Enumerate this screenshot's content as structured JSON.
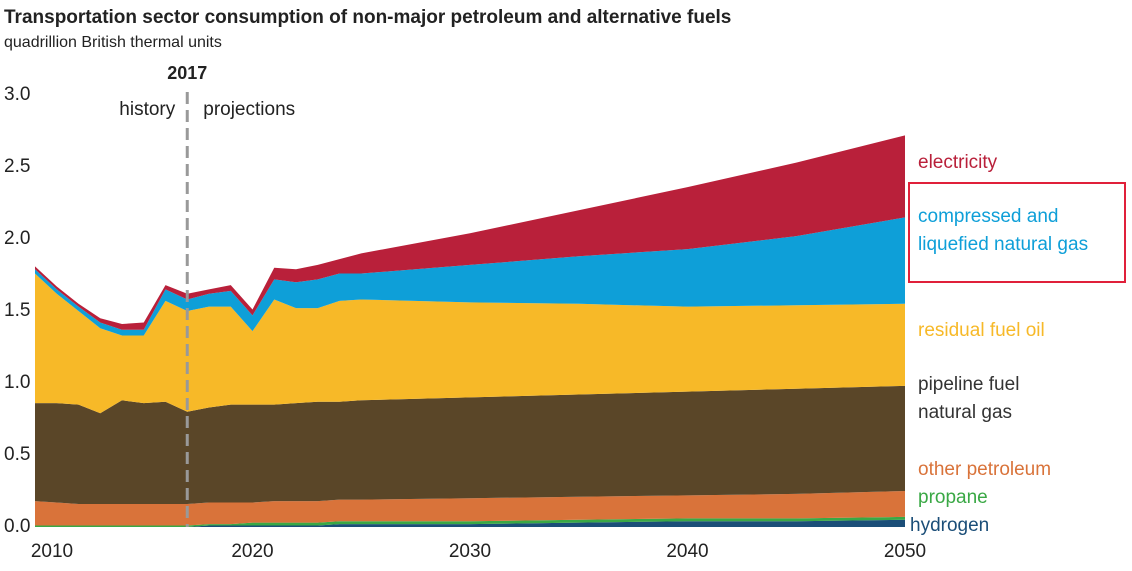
{
  "chart_data": {
    "type": "stacked_area",
    "title": "Transportation sector consumption of non-major petroleum and alternative fuels",
    "subtitle": "quadrillion British thermal units",
    "divider_year": 2017,
    "divider_left": "history",
    "divider_right": "projections",
    "x": [
      2010,
      2011,
      2012,
      2013,
      2014,
      2015,
      2016,
      2017,
      2018,
      2019,
      2020,
      2021,
      2022,
      2023,
      2024,
      2025,
      2030,
      2035,
      2040,
      2045,
      2050
    ],
    "xlim": [
      2010,
      2050
    ],
    "xticks": [
      2010,
      2020,
      2030,
      2040,
      2050
    ],
    "ylim": [
      0,
      3
    ],
    "yticks": [
      {
        "value": 0,
        "label": "0.0"
      },
      0.5,
      {
        "value": 1,
        "label": "1.0"
      },
      1.5,
      {
        "value": 2,
        "label": "2.0"
      },
      2.5,
      {
        "value": 3,
        "label": "3.0"
      }
    ],
    "grid": false,
    "series": [
      {
        "name": "hydrogen",
        "color": "#1b4e78",
        "values": [
          0,
          0,
          0,
          0,
          0,
          0,
          0,
          0,
          0.01,
          0.01,
          0.01,
          0.01,
          0.01,
          0.01,
          0.02,
          0.02,
          0.02,
          0.03,
          0.04,
          0.04,
          0.05
        ]
      },
      {
        "name": "propane",
        "color": "#3aa845",
        "values": [
          0.01,
          0.01,
          0.01,
          0.01,
          0.01,
          0.01,
          0.01,
          0.01,
          0.01,
          0.01,
          0.02,
          0.02,
          0.02,
          0.02,
          0.02,
          0.02,
          0.02,
          0.02,
          0.02,
          0.02,
          0.02
        ]
      },
      {
        "name": "other petroleum",
        "color": "#d9733a",
        "values": [
          0.17,
          0.16,
          0.15,
          0.15,
          0.15,
          0.15,
          0.15,
          0.15,
          0.15,
          0.15,
          0.14,
          0.15,
          0.15,
          0.15,
          0.15,
          0.15,
          0.16,
          0.16,
          0.16,
          0.17,
          0.18
        ]
      },
      {
        "name": "pipeline fuel natural gas",
        "color": "#5a4628",
        "values": [
          0.68,
          0.69,
          0.69,
          0.63,
          0.72,
          0.7,
          0.71,
          0.64,
          0.66,
          0.68,
          0.68,
          0.67,
          0.68,
          0.69,
          0.68,
          0.69,
          0.7,
          0.71,
          0.72,
          0.73,
          0.73
        ]
      },
      {
        "name": "residual fuel oil",
        "color": "#f7b928",
        "values": [
          0.9,
          0.76,
          0.65,
          0.59,
          0.45,
          0.47,
          0.7,
          0.7,
          0.7,
          0.68,
          0.51,
          0.73,
          0.66,
          0.65,
          0.7,
          0.7,
          0.66,
          0.63,
          0.59,
          0.58,
          0.57
        ]
      },
      {
        "name": "compressed and liquefied natural gas",
        "color": "#0e9fd8",
        "values": [
          0.03,
          0.03,
          0.03,
          0.04,
          0.04,
          0.04,
          0.08,
          0.08,
          0.09,
          0.11,
          0.11,
          0.14,
          0.18,
          0.2,
          0.19,
          0.18,
          0.26,
          0.33,
          0.4,
          0.48,
          0.6
        ]
      },
      {
        "name": "electricity",
        "color": "#b9203a",
        "values": [
          0.02,
          0.02,
          0.02,
          0.03,
          0.04,
          0.05,
          0.03,
          0.04,
          0.03,
          0.04,
          0.04,
          0.08,
          0.09,
          0.1,
          0.1,
          0.14,
          0.22,
          0.32,
          0.43,
          0.51,
          0.57
        ]
      }
    ]
  }
}
